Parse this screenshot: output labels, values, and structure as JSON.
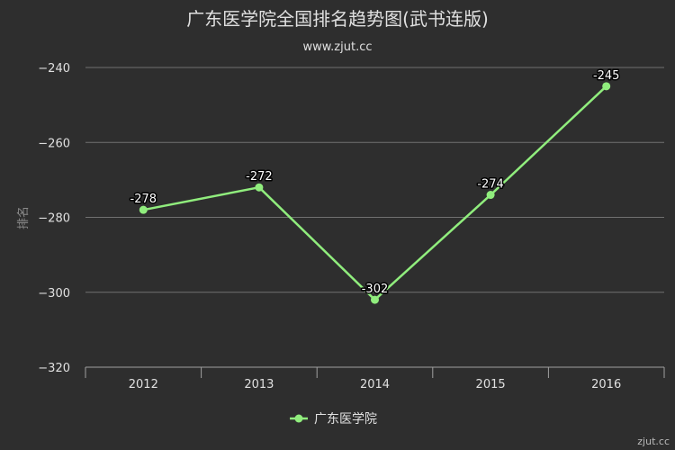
{
  "chart_data": {
    "type": "line",
    "title": "广东医学院全国排名趋势图(武书连版)",
    "subtitle": "www.zjut.cc",
    "ylabel": "排名",
    "xlabel": "",
    "categories": [
      "2012",
      "2013",
      "2014",
      "2015",
      "2016"
    ],
    "series": [
      {
        "name": "广东医学院",
        "values": [
          -278,
          -272,
          -302,
          -274,
          -245
        ]
      }
    ],
    "data_labels": [
      "-278",
      "-272",
      "-302",
      "-274",
      "-245"
    ],
    "ylim": [
      -320,
      -240
    ],
    "yticks": [
      -240,
      -260,
      -280,
      -300,
      -320
    ],
    "ytick_labels": [
      "−240",
      "−260",
      "−280",
      "−300",
      "−320"
    ],
    "grid": true,
    "legend_position": "bottom-center",
    "line_color": "#90ed7d",
    "credit": "zjut.cc"
  }
}
